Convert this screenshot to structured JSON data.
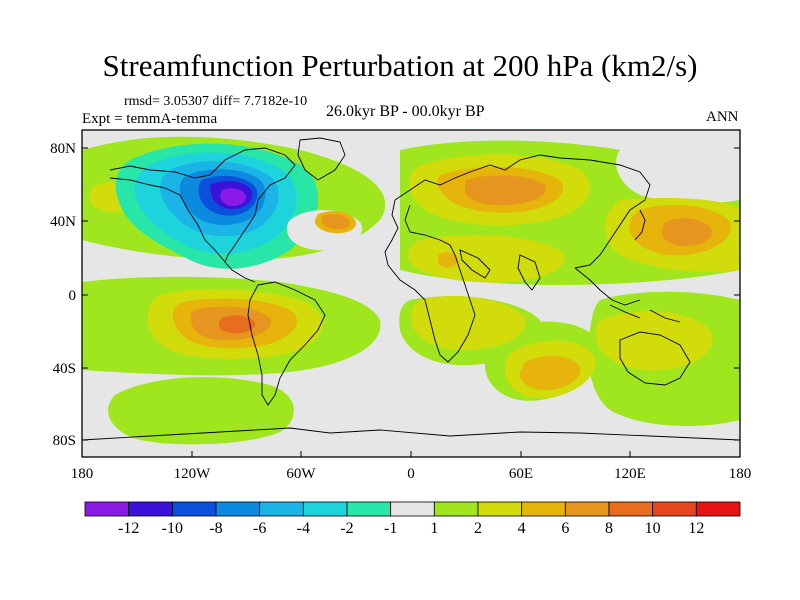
{
  "title": "Streamfunction Perturbation at 200 hPa (km2/s)",
  "stats": "rmsd= 3.05307 diff= 7.7182e-10",
  "experiment": "Expt = temmA-temma",
  "period": "26.0kyr BP - 00.0kyr BP",
  "season": "ANN",
  "lat_labels": [
    "80N",
    "40N",
    "0",
    "40S",
    "80S"
  ],
  "lon_labels": [
    "180",
    "120W",
    "60W",
    "0",
    "60E",
    "120E",
    "180"
  ],
  "colorbar": {
    "labels": [
      "-12",
      "-10",
      "-8",
      "-6",
      "-4",
      "-2",
      "-1",
      "1",
      "2",
      "4",
      "6",
      "8",
      "10",
      "12"
    ],
    "colors": [
      "#8b1ae6",
      "#3a12d8",
      "#0b50dc",
      "#0b8ae0",
      "#1ab4e6",
      "#1ed4dc",
      "#28e6a8",
      "#e6e6e6",
      "#a0e61e",
      "#d2dc0a",
      "#e6b40a",
      "#e6961e",
      "#e66e1e",
      "#e6461e",
      "#e61414"
    ]
  },
  "map": {
    "background_color": "#e6e6e6",
    "anomalies": [
      {
        "label": "-12",
        "lon": -92,
        "lat": 48,
        "color": "#8b1ae6"
      },
      {
        "label": "4",
        "lon": 55,
        "lat": 50,
        "color": "#e6b40a"
      },
      {
        "label": "6",
        "lon": -95,
        "lat": -15,
        "color": "#e6961e"
      },
      {
        "label": "4",
        "lon": 155,
        "lat": 30,
        "color": "#e6b40a"
      }
    ]
  }
}
